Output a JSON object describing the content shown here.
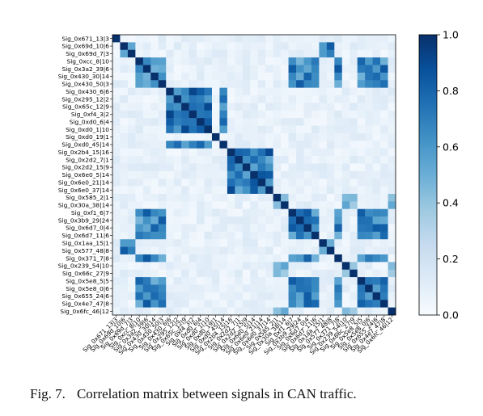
{
  "caption": {
    "label": "Fig. 7.",
    "text": "Correlation matrix between signals in CAN traffic."
  },
  "chart_data": {
    "type": "heatmap",
    "title": "",
    "xlabel": "",
    "ylabel": "",
    "colormap": "Blues",
    "vmin": 0.0,
    "vmax": 1.0,
    "colorbar_ticks": [
      "0.0",
      "0.2",
      "0.4",
      "0.6",
      "0.8",
      "1.0"
    ],
    "colorbar_tick_values": [
      0.0,
      0.2,
      0.4,
      0.6,
      0.8,
      1.0
    ],
    "row_labels": [
      "Sig_0x671_13|3",
      "Sig_0x69d_10|6",
      "Sig_0x69d_7|3",
      "Sig_0xcc_8|10",
      "Sig_0x3a2_39|6",
      "Sig_0x430_30|14",
      "Sig_0x430_50|3",
      "Sig_0x430_6|6",
      "Sig_0x295_12|2",
      "Sig_0x65c_12|9",
      "Sig_0xf4_3|2",
      "Sig_0xd0_6|4",
      "Sig_0xd0_1|10",
      "Sig_0xd0_19|1",
      "Sig_0xd0_45|14",
      "Sig_0x2b4_15|16",
      "Sig_0x2d2_7|1",
      "Sig_0x2d2_15|9",
      "Sig_0x6e0_5|14",
      "Sig_0x6e0_21|14",
      "Sig_0x6e0_37|14",
      "Sig_0x585_2|1",
      "Sig_0x30a_38|14",
      "Sig_0xf1_6|7",
      "Sig_0x3b9_29|24",
      "Sig_0x6d7_0|4",
      "Sig_0x6d7_11|6",
      "Sig_0x1aa_15|1",
      "Sig_0x577_48|8",
      "Sig_0x371_7|8",
      "Sig_0x239_54|10",
      "Sig_0x66c_27|9",
      "Sig_0x5e8_5|5",
      "Sig_0x5e8_0|6",
      "Sig_0x655_24|6",
      "Sig_0x4e7_47|8",
      "Sig_0x6fc_46|12"
    ],
    "col_labels": [
      "Sig_0x671_13|3",
      "Sig_0x69d_10|6",
      "Sig_0x69d_7|3",
      "Sig_0xcc_8|10",
      "Sig_0x3a2_39|6",
      "Sig_0x430_30|14",
      "Sig_0x430_50|3",
      "Sig_0x430_6|6",
      "Sig_0x295_12|2",
      "Sig_0x65c_12|9",
      "Sig_0xf4_3|2",
      "Sig_0xd0_6|4",
      "Sig_0xd0_1|10",
      "Sig_0xd0_19|1",
      "Sig_0xd0_45|14",
      "Sig_0x2b4_15|16",
      "Sig_0x2d2_7|1",
      "Sig_0x2d2_15|9",
      "Sig_0x6e0_5|14",
      "Sig_0x6e0_21|14",
      "Sig_0x6e0_37|14",
      "Sig_0x585_2|1",
      "Sig_0x30a_38|14",
      "Sig_0xf1_6|7",
      "Sig_0x3b9_29|24",
      "Sig_0x6d7_0|4",
      "Sig_0x6d7_11|6",
      "Sig_0x1aa_15|1",
      "Sig_0x577_48|8",
      "Sig_0x371_7|8",
      "Sig_0x239_54|10",
      "Sig_0x66c_27|9",
      "Sig_0x5e8_5|5",
      "Sig_0x5e8_0|6",
      "Sig_0x655_24|6",
      "Sig_0x4e7_47|8",
      "Sig_0x6fc_46|12"
    ],
    "clusters": [
      {
        "members": [
          3,
          4,
          5,
          6,
          23,
          24,
          25,
          26,
          29,
          32,
          33,
          34,
          35
        ],
        "value": 0.85
      },
      {
        "members": [
          7,
          8,
          9,
          10,
          11,
          12,
          14
        ],
        "value": 0.95
      },
      {
        "members": [
          15,
          16,
          17,
          18,
          19,
          20
        ],
        "value": 0.92
      },
      {
        "members": [
          1,
          2,
          27,
          28
        ],
        "value": 0.9
      },
      {
        "members": [
          21,
          22,
          30,
          31,
          36
        ],
        "value": 0.6
      }
    ],
    "background_value": 0.08,
    "diagonal_value": 1.0
  }
}
